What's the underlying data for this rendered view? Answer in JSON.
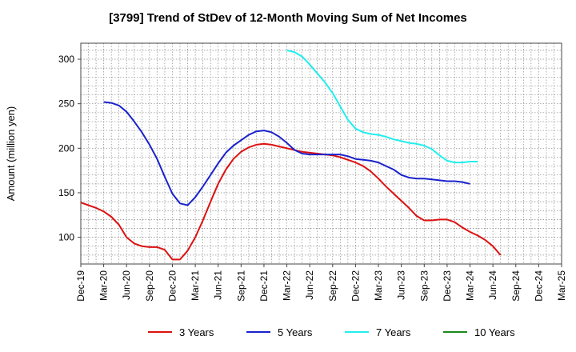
{
  "chart_data": {
    "type": "line",
    "title": "[3799]  Trend of StDev of 12-Month Moving Sum of Net Incomes",
    "ylabel": "Amount (million yen)",
    "xlabel": "",
    "x_ticks": [
      "Dec-19",
      "Mar-20",
      "Jun-20",
      "Sep-20",
      "Dec-20",
      "Mar-21",
      "Jun-21",
      "Sep-21",
      "Dec-21",
      "Mar-22",
      "Jun-22",
      "Sep-22",
      "Dec-22",
      "Mar-23",
      "Jun-23",
      "Sep-23",
      "Dec-23",
      "Mar-24",
      "Jun-24",
      "Sep-24",
      "Dec-24",
      "Mar-25"
    ],
    "y_ticks": [
      100,
      150,
      200,
      250,
      300
    ],
    "ylim": [
      70,
      318
    ],
    "xlim_months": [
      0,
      63
    ],
    "grid": true,
    "legend_position": "bottom",
    "series": [
      {
        "name": "3 Years",
        "color": "#dd1111",
        "points": [
          [
            0,
            139
          ],
          [
            1,
            136
          ],
          [
            2,
            133
          ],
          [
            3,
            129
          ],
          [
            4,
            123
          ],
          [
            5,
            114
          ],
          [
            6,
            100
          ],
          [
            7,
            93
          ],
          [
            8,
            90
          ],
          [
            9,
            89
          ],
          [
            10,
            89
          ],
          [
            11,
            86
          ],
          [
            12,
            75
          ],
          [
            13,
            75
          ],
          [
            14,
            85
          ],
          [
            15,
            100
          ],
          [
            16,
            119
          ],
          [
            17,
            140
          ],
          [
            18,
            160
          ],
          [
            19,
            176
          ],
          [
            20,
            188
          ],
          [
            21,
            196
          ],
          [
            22,
            201
          ],
          [
            23,
            204
          ],
          [
            24,
            205
          ],
          [
            25,
            204
          ],
          [
            26,
            202
          ],
          [
            27,
            200
          ],
          [
            28,
            198
          ],
          [
            29,
            196
          ],
          [
            30,
            195
          ],
          [
            31,
            194
          ],
          [
            32,
            193
          ],
          [
            33,
            192
          ],
          [
            34,
            190
          ],
          [
            35,
            187
          ],
          [
            36,
            184
          ],
          [
            37,
            180
          ],
          [
            38,
            174
          ],
          [
            39,
            166
          ],
          [
            40,
            157
          ],
          [
            41,
            149
          ],
          [
            42,
            141
          ],
          [
            43,
            133
          ],
          [
            44,
            124
          ],
          [
            45,
            119
          ],
          [
            46,
            119
          ],
          [
            47,
            120
          ],
          [
            48,
            120
          ],
          [
            49,
            117
          ],
          [
            50,
            111
          ],
          [
            51,
            106
          ],
          [
            52,
            102
          ],
          [
            53,
            97
          ],
          [
            54,
            90
          ],
          [
            55,
            80
          ]
        ]
      },
      {
        "name": "5 Years",
        "color": "#1a22cc",
        "points": [
          [
            3,
            252
          ],
          [
            4,
            251
          ],
          [
            5,
            248
          ],
          [
            6,
            241
          ],
          [
            7,
            230
          ],
          [
            8,
            218
          ],
          [
            9,
            204
          ],
          [
            10,
            188
          ],
          [
            11,
            168
          ],
          [
            12,
            149
          ],
          [
            13,
            138
          ],
          [
            14,
            136
          ],
          [
            15,
            145
          ],
          [
            16,
            157
          ],
          [
            17,
            170
          ],
          [
            18,
            183
          ],
          [
            19,
            195
          ],
          [
            20,
            203
          ],
          [
            21,
            209
          ],
          [
            22,
            215
          ],
          [
            23,
            219
          ],
          [
            24,
            220
          ],
          [
            25,
            218
          ],
          [
            26,
            213
          ],
          [
            27,
            206
          ],
          [
            28,
            198
          ],
          [
            29,
            194
          ],
          [
            30,
            193
          ],
          [
            31,
            193
          ],
          [
            32,
            193
          ],
          [
            33,
            193
          ],
          [
            34,
            193
          ],
          [
            35,
            191
          ],
          [
            36,
            188
          ],
          [
            37,
            187
          ],
          [
            38,
            186
          ],
          [
            39,
            184
          ],
          [
            40,
            180
          ],
          [
            41,
            176
          ],
          [
            42,
            170
          ],
          [
            43,
            167
          ],
          [
            44,
            166
          ],
          [
            45,
            166
          ],
          [
            46,
            165
          ],
          [
            47,
            164
          ],
          [
            48,
            163
          ],
          [
            49,
            163
          ],
          [
            50,
            162
          ],
          [
            51,
            160
          ]
        ]
      },
      {
        "name": "7 Years",
        "color": "#22eeee",
        "points": [
          [
            27,
            310
          ],
          [
            28,
            308
          ],
          [
            29,
            303
          ],
          [
            30,
            294
          ],
          [
            31,
            284
          ],
          [
            32,
            274
          ],
          [
            33,
            262
          ],
          [
            34,
            247
          ],
          [
            35,
            232
          ],
          [
            36,
            222
          ],
          [
            37,
            218
          ],
          [
            38,
            216
          ],
          [
            39,
            215
          ],
          [
            40,
            213
          ],
          [
            41,
            210
          ],
          [
            42,
            208
          ],
          [
            43,
            206
          ],
          [
            44,
            205
          ],
          [
            45,
            203
          ],
          [
            46,
            199
          ],
          [
            47,
            192
          ],
          [
            48,
            186
          ],
          [
            49,
            184
          ],
          [
            50,
            184
          ],
          [
            51,
            185
          ],
          [
            52,
            185
          ]
        ]
      },
      {
        "name": "10 Years",
        "color": "#1a8a1a",
        "points": []
      }
    ]
  }
}
